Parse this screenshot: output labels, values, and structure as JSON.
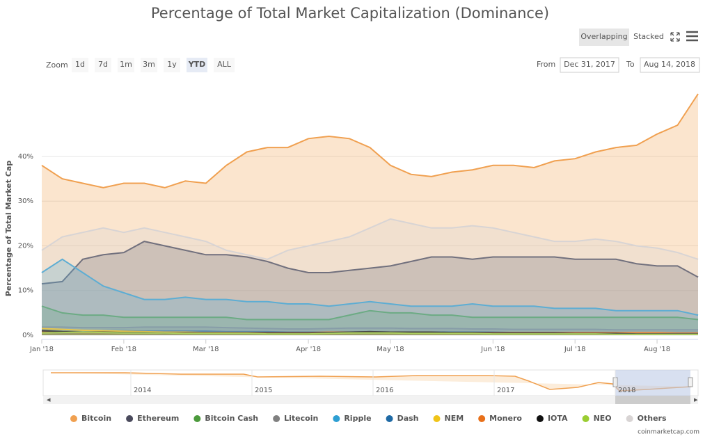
{
  "chart_data": {
    "type": "area",
    "title": "Percentage of Total Market Capitalization (Dominance)",
    "y_label": "Percentage of Total Market Cap",
    "categories": [
      "Jan '18",
      null,
      null,
      null,
      "Feb '18",
      null,
      null,
      null,
      "Mar '18",
      null,
      null,
      null,
      null,
      "Apr '18",
      null,
      null,
      null,
      "May '18",
      null,
      null,
      null,
      null,
      "Jun '18",
      null,
      null,
      null,
      "Jul '18",
      null,
      null,
      null,
      "Aug '18",
      null,
      null
    ],
    "ylim": [
      0,
      54
    ],
    "yticks": [
      {
        "value": 0,
        "label": "0%"
      },
      {
        "value": 10,
        "label": "10%"
      },
      {
        "value": 20,
        "label": "20%"
      },
      {
        "value": 30,
        "label": "30%"
      },
      {
        "value": 40,
        "label": "40%"
      }
    ],
    "grid": true,
    "series": [
      {
        "name": "Bitcoin",
        "color": "#f0a050",
        "values": [
          38,
          35,
          34,
          33,
          34,
          34,
          33,
          34.5,
          34,
          38,
          41,
          42,
          42,
          44,
          44.5,
          44,
          42,
          38,
          36,
          35.5,
          36.5,
          37,
          38,
          38,
          37.5,
          39,
          39.5,
          41,
          42,
          42.5,
          45,
          47,
          54
        ]
      },
      {
        "name": "Ethereum",
        "color": "#4a4a5c",
        "values": [
          11.5,
          12,
          17,
          18,
          18.5,
          21,
          20,
          19,
          18,
          18,
          17.5,
          16.5,
          15,
          14,
          14,
          14.5,
          15,
          15.5,
          16.5,
          17.5,
          17.5,
          17,
          17.5,
          17.5,
          17.5,
          17.5,
          17,
          17,
          17,
          16,
          15.5,
          15.5,
          13
        ]
      },
      {
        "name": "Bitcoin Cash",
        "color": "#4c9a3c",
        "values": [
          6.5,
          5,
          4.5,
          4.5,
          4,
          4,
          4,
          4,
          4,
          4,
          3.5,
          3.5,
          3.5,
          3.5,
          3.5,
          4.5,
          5.5,
          5,
          5,
          4.5,
          4.5,
          4,
          4,
          4,
          4,
          4,
          4,
          4,
          4,
          4,
          4,
          4,
          3.5
        ]
      },
      {
        "name": "Litecoin",
        "color": "#808080",
        "values": [
          1.8,
          1.8,
          1.7,
          1.7,
          1.7,
          1.8,
          1.8,
          1.8,
          1.8,
          1.7,
          1.6,
          1.5,
          1.4,
          1.4,
          1.5,
          1.6,
          1.6,
          1.6,
          1.5,
          1.5,
          1.5,
          1.4,
          1.4,
          1.3,
          1.3,
          1.3,
          1.3,
          1.3,
          1.2,
          1.2,
          1.2,
          1.2,
          1.2
        ]
      },
      {
        "name": "Ripple",
        "color": "#2e9fd3",
        "values": [
          14,
          17,
          14,
          11,
          9.5,
          8,
          8,
          8.5,
          8,
          8,
          7.5,
          7.5,
          7,
          7,
          6.5,
          7,
          7.5,
          7,
          6.5,
          6.5,
          6.5,
          7,
          6.5,
          6.5,
          6.5,
          6,
          6,
          6,
          5.5,
          5.5,
          5.5,
          5.5,
          4.5
        ]
      },
      {
        "name": "Dash",
        "color": "#1f6aa5",
        "values": [
          1.2,
          1.1,
          1,
          1,
          1,
          0.9,
          0.9,
          0.9,
          0.9,
          0.8,
          0.8,
          0.8,
          0.7,
          0.7,
          0.7,
          0.7,
          0.8,
          0.7,
          0.7,
          0.7,
          0.7,
          0.7,
          0.7,
          0.6,
          0.6,
          0.6,
          0.6,
          0.6,
          0.6,
          0.6,
          0.6,
          0.6,
          0.6
        ]
      },
      {
        "name": "NEM",
        "color": "#f0c419",
        "values": [
          1.5,
          1.3,
          1.1,
          1,
          0.9,
          0.8,
          0.7,
          0.7,
          0.6,
          0.6,
          0.5,
          0.5,
          0.5,
          0.5,
          0.5,
          0.5,
          0.6,
          0.5,
          0.5,
          0.4,
          0.4,
          0.4,
          0.4,
          0.4,
          0.4,
          0.4,
          0.4,
          0.4,
          0.3,
          0.3,
          0.3,
          0.3,
          0.3
        ]
      },
      {
        "name": "Monero",
        "color": "#e8701a",
        "values": [
          0.8,
          0.7,
          0.6,
          0.6,
          0.6,
          0.6,
          0.6,
          0.6,
          0.6,
          0.6,
          0.6,
          0.6,
          0.6,
          0.6,
          0.7,
          0.7,
          0.7,
          0.7,
          0.6,
          0.6,
          0.6,
          0.6,
          0.6,
          0.6,
          0.6,
          0.6,
          0.6,
          0.6,
          0.6,
          0.6,
          0.6,
          0.5,
          0.5
        ]
      },
      {
        "name": "IOTA",
        "color": "#111111",
        "values": [
          1,
          0.8,
          0.7,
          0.7,
          0.6,
          0.6,
          0.5,
          0.5,
          0.5,
          0.5,
          0.5,
          0.5,
          0.5,
          0.5,
          0.6,
          0.7,
          0.8,
          0.7,
          0.7,
          0.7,
          0.6,
          0.6,
          0.5,
          0.5,
          0.5,
          0.5,
          0.4,
          0.4,
          0.4,
          0.3,
          0.3,
          0.3,
          0.3
        ]
      },
      {
        "name": "NEO",
        "color": "#9acd32",
        "values": [
          0.5,
          0.6,
          0.7,
          0.6,
          0.5,
          0.5,
          0.5,
          0.4,
          0.4,
          0.4,
          0.4,
          0.3,
          0.3,
          0.3,
          0.4,
          0.5,
          0.5,
          0.5,
          0.4,
          0.4,
          0.4,
          0.4,
          0.3,
          0.3,
          0.3,
          0.3,
          0.3,
          0.3,
          0.2,
          0.2,
          0.2,
          0.2,
          0.2
        ]
      },
      {
        "name": "Others",
        "color": "#d8d4d4",
        "values": [
          19,
          22,
          23,
          24,
          23,
          24,
          23,
          22,
          21,
          19,
          18,
          17,
          19,
          20,
          21,
          22,
          24,
          26,
          25,
          24,
          24,
          24.5,
          24,
          23,
          22,
          21,
          21,
          21.5,
          21,
          20,
          19.5,
          18.5,
          17
        ]
      }
    ]
  },
  "toolbar": {
    "zoom_label": "Zoom",
    "zoom_buttons": [
      "1d",
      "7d",
      "1m",
      "3m",
      "1y",
      "YTD",
      "ALL"
    ],
    "selected_zoom": "YTD",
    "from_label": "From",
    "from_date": "Dec 31, 2017",
    "to_label": "To",
    "to_date": "Aug 14, 2018",
    "view_buttons": [
      "Overlapping",
      "Stacked"
    ]
  },
  "navigator": {
    "years": [
      "2014",
      "2015",
      "2016",
      "2017",
      "2018"
    ]
  },
  "credit": "coinmarketcap.com"
}
